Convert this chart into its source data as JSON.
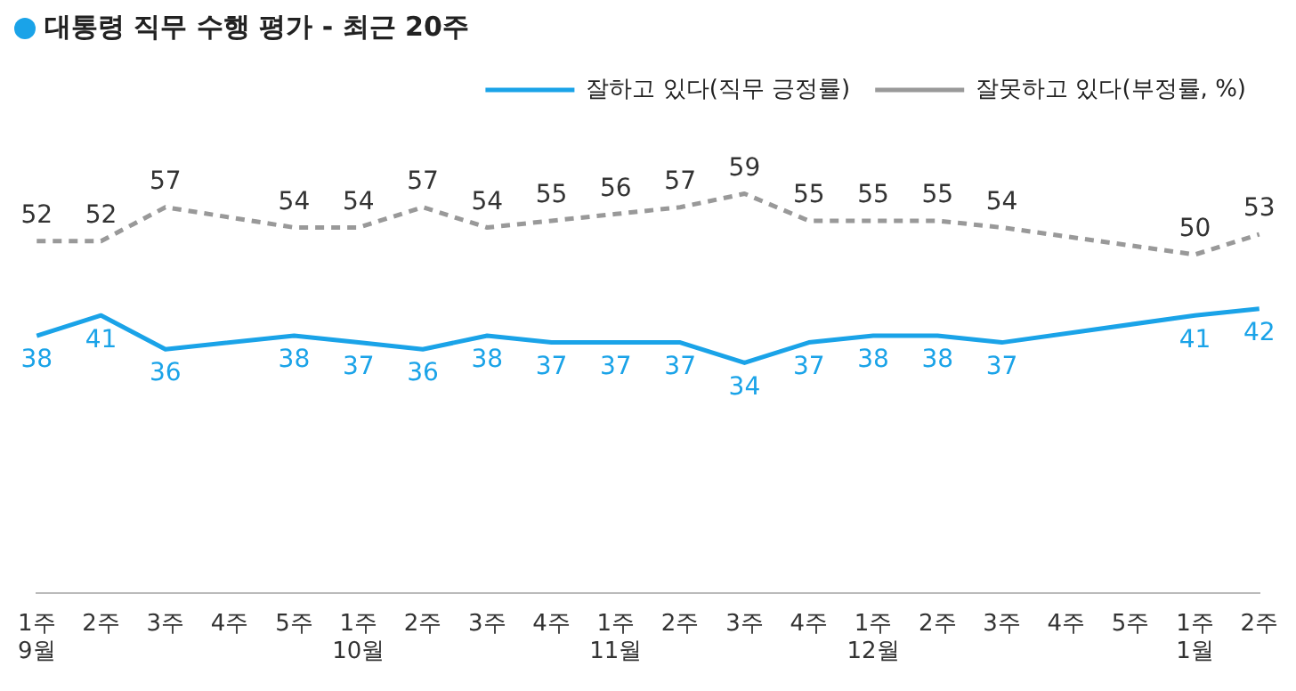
{
  "chart_data": {
    "type": "line",
    "title": "대통령 직무 수행 평가 - 최근 20주",
    "categories": [
      "1주\n9월",
      "2주",
      "3주",
      "4주",
      "5주",
      "1주\n10월",
      "2주",
      "3주",
      "4주",
      "1주\n11월",
      "2주",
      "3주",
      "4주",
      "1주\n12월",
      "2주",
      "3주",
      "4주",
      "5주",
      "1주\n1월",
      "2주"
    ],
    "series": [
      {
        "name": "잘하고 있다(직무 긍정률)",
        "color": "#1aa3e8",
        "line_style": "solid",
        "values": [
          38,
          41,
          36,
          null,
          38,
          37,
          36,
          38,
          37,
          37,
          37,
          34,
          37,
          38,
          38,
          37,
          null,
          null,
          41,
          42
        ]
      },
      {
        "name": "잘못하고 있다(부정률, %)",
        "color": "#999999",
        "line_style": "dashed",
        "values": [
          52,
          52,
          57,
          null,
          54,
          54,
          57,
          54,
          55,
          56,
          57,
          59,
          55,
          55,
          55,
          54,
          null,
          null,
          50,
          53
        ]
      }
    ],
    "tick_labels": "x",
    "data_labels": true,
    "legend": "top right",
    "grid": false,
    "marker": "none"
  }
}
